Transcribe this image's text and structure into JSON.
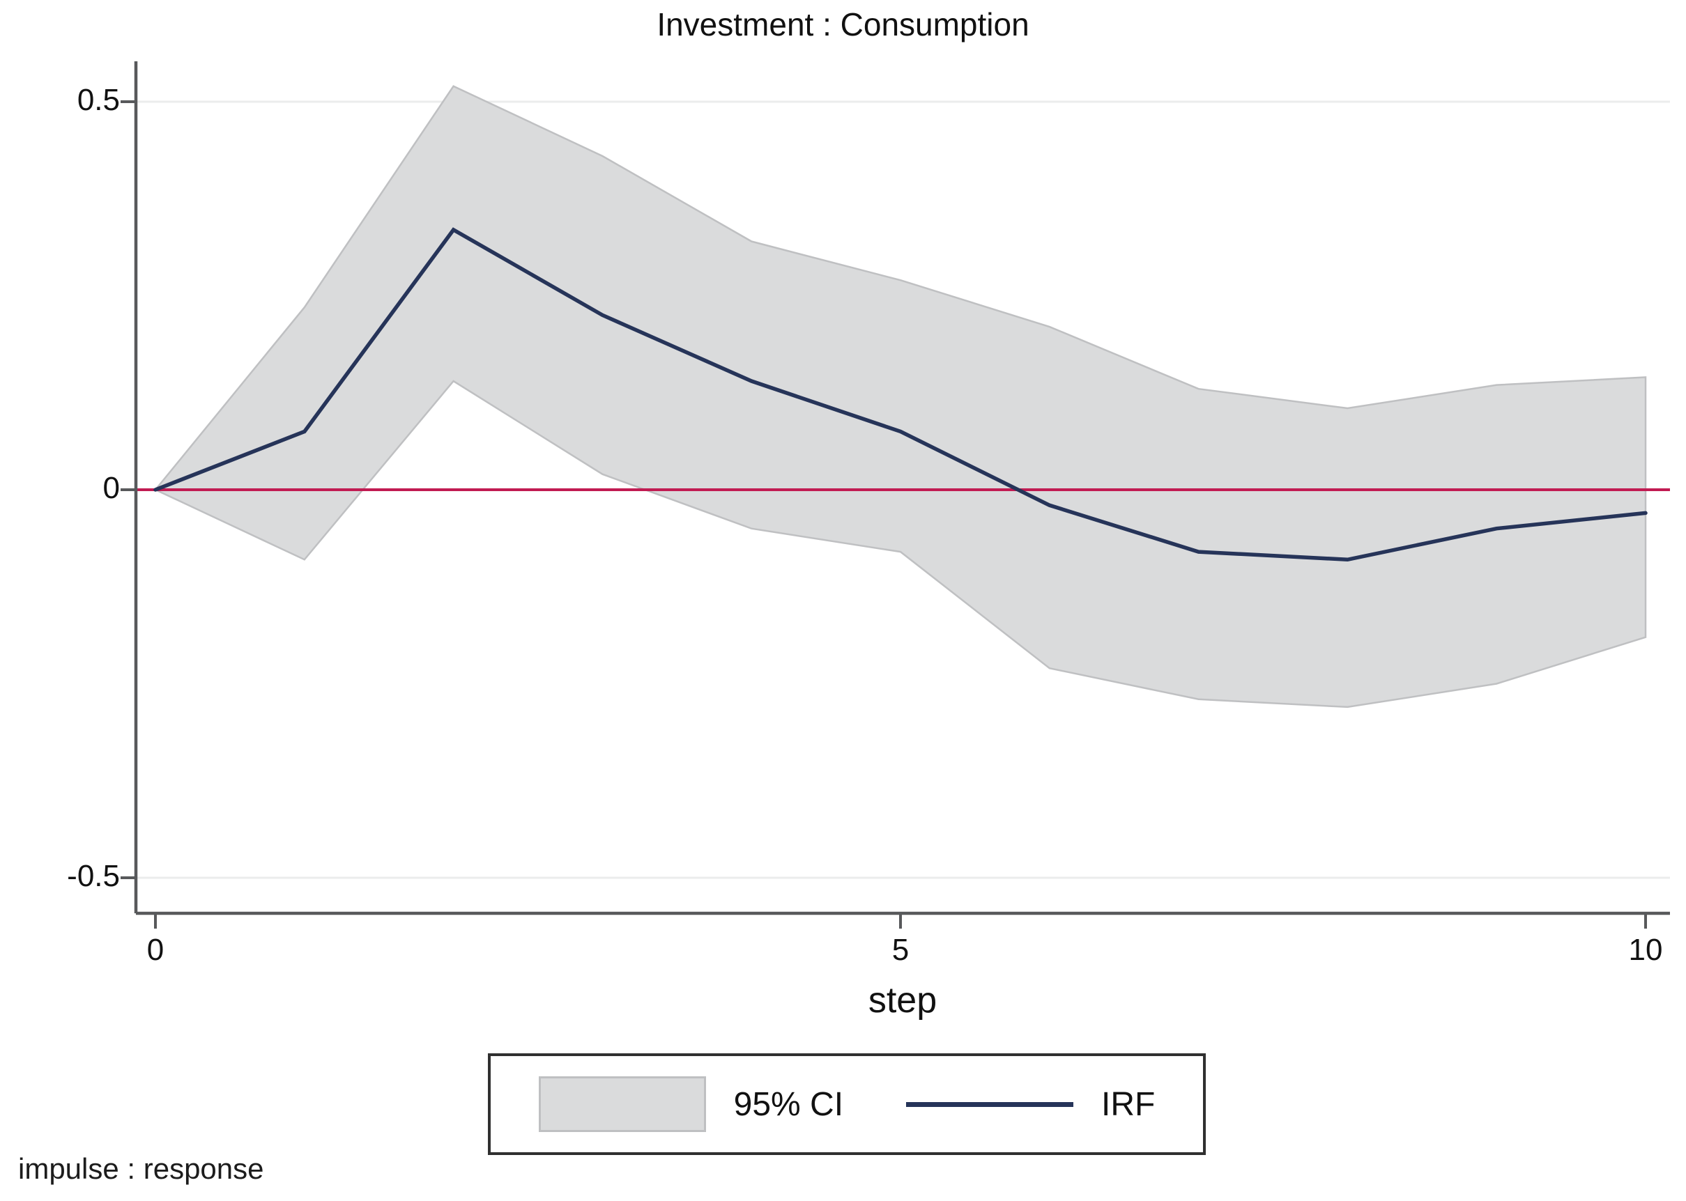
{
  "chart_data": {
    "type": "line",
    "title": "Investment : Consumption",
    "xlabel": "step",
    "footer": "impulse : response",
    "x": [
      0,
      1,
      2,
      3,
      4,
      5,
      6,
      7,
      8,
      9,
      10
    ],
    "series": [
      {
        "name": "95% CI",
        "type": "band",
        "fill": "#dadbdc",
        "border": "#bfc0c2",
        "upper": [
          0,
          0.235,
          0.52,
          0.43,
          0.32,
          0.27,
          0.21,
          0.13,
          0.105,
          0.135,
          0.145
        ],
        "lower": [
          0,
          -0.09,
          0.14,
          0.02,
          -0.05,
          -0.08,
          -0.23,
          -0.27,
          -0.28,
          -0.25,
          -0.19
        ]
      },
      {
        "name": "IRF",
        "type": "line",
        "color": "#263459",
        "values": [
          0,
          0.075,
          0.335,
          0.225,
          0.14,
          0.075,
          -0.02,
          -0.08,
          -0.09,
          -0.05,
          -0.03
        ]
      }
    ],
    "zero_line": {
      "value": 0,
      "color": "#c11b52"
    },
    "x_ticks": [
      {
        "value": 0,
        "label": "0"
      },
      {
        "value": 5,
        "label": "5"
      },
      {
        "value": 10,
        "label": "10"
      }
    ],
    "y_ticks": [
      {
        "value": 0.5,
        "label": "0.5"
      },
      {
        "value": 0,
        "label": "0"
      },
      {
        "value": -0.5,
        "label": "-0.5"
      }
    ],
    "xlim": [
      0,
      10
    ],
    "ylim": [
      -0.55,
      0.55
    ],
    "grid": "horizontal-at-ticks",
    "grid_color": "#ebecec",
    "axis_color": "#58595b",
    "legend": {
      "position": "bottom",
      "entries": [
        "95% CI",
        "IRF"
      ]
    }
  }
}
